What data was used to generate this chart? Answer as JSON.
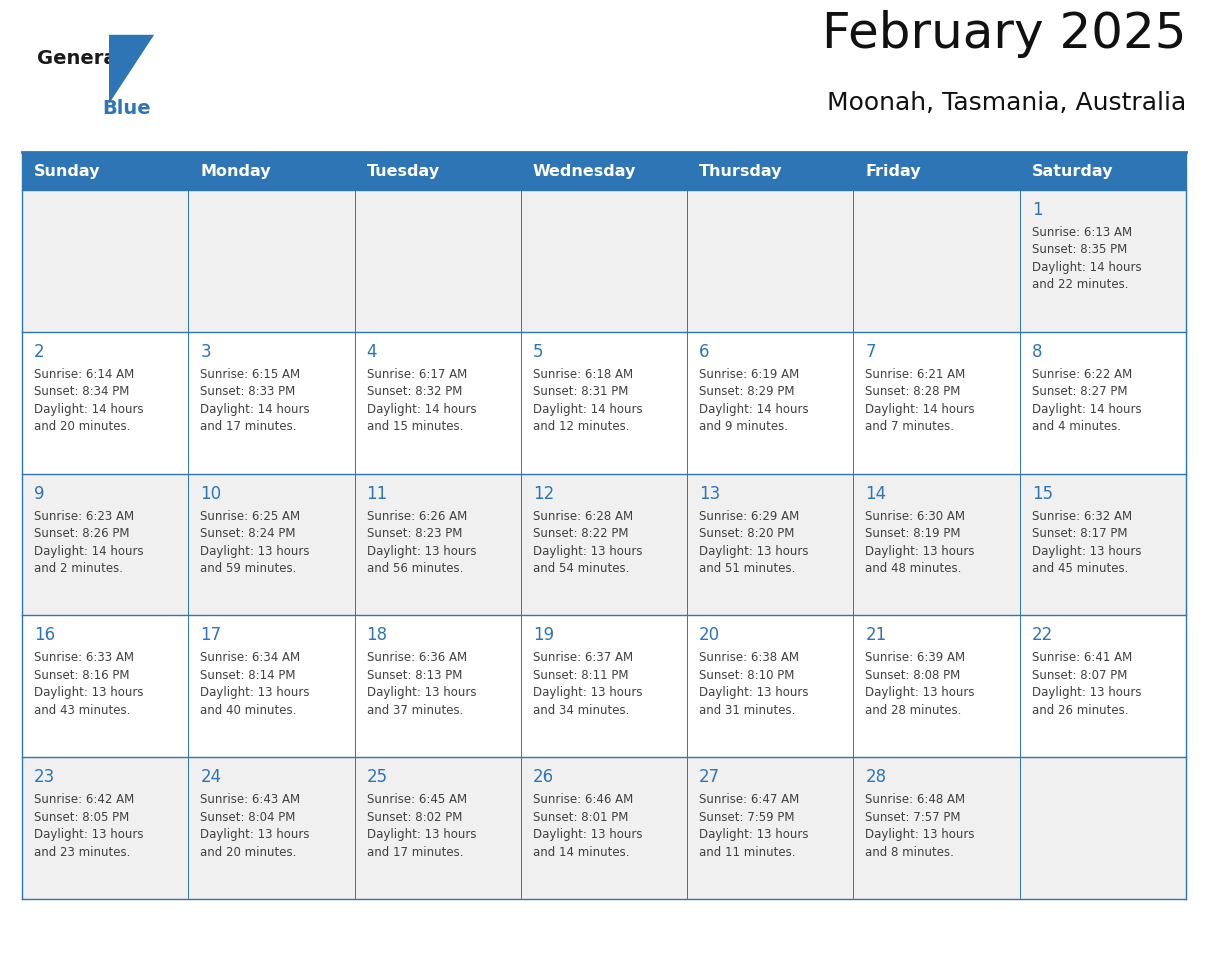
{
  "title": "February 2025",
  "subtitle": "Moonah, Tasmania, Australia",
  "header_bg": "#2E6DA4",
  "header_text": "#FFFFFF",
  "cell_bg_row0": "#F0F0F0",
  "cell_bg_row1": "#FFFFFF",
  "cell_bg_row2": "#F0F0F0",
  "cell_bg_row3": "#FFFFFF",
  "cell_bg_row4": "#F0F0F0",
  "day_headers": [
    "Sunday",
    "Monday",
    "Tuesday",
    "Wednesday",
    "Thursday",
    "Friday",
    "Saturday"
  ],
  "days": [
    {
      "day": 1,
      "col": 6,
      "row": 0,
      "sunrise": "6:13 AM",
      "sunset": "8:35 PM",
      "daylight": "14 hours\nand 22 minutes."
    },
    {
      "day": 2,
      "col": 0,
      "row": 1,
      "sunrise": "6:14 AM",
      "sunset": "8:34 PM",
      "daylight": "14 hours\nand 20 minutes."
    },
    {
      "day": 3,
      "col": 1,
      "row": 1,
      "sunrise": "6:15 AM",
      "sunset": "8:33 PM",
      "daylight": "14 hours\nand 17 minutes."
    },
    {
      "day": 4,
      "col": 2,
      "row": 1,
      "sunrise": "6:17 AM",
      "sunset": "8:32 PM",
      "daylight": "14 hours\nand 15 minutes."
    },
    {
      "day": 5,
      "col": 3,
      "row": 1,
      "sunrise": "6:18 AM",
      "sunset": "8:31 PM",
      "daylight": "14 hours\nand 12 minutes."
    },
    {
      "day": 6,
      "col": 4,
      "row": 1,
      "sunrise": "6:19 AM",
      "sunset": "8:29 PM",
      "daylight": "14 hours\nand 9 minutes."
    },
    {
      "day": 7,
      "col": 5,
      "row": 1,
      "sunrise": "6:21 AM",
      "sunset": "8:28 PM",
      "daylight": "14 hours\nand 7 minutes."
    },
    {
      "day": 8,
      "col": 6,
      "row": 1,
      "sunrise": "6:22 AM",
      "sunset": "8:27 PM",
      "daylight": "14 hours\nand 4 minutes."
    },
    {
      "day": 9,
      "col": 0,
      "row": 2,
      "sunrise": "6:23 AM",
      "sunset": "8:26 PM",
      "daylight": "14 hours\nand 2 minutes."
    },
    {
      "day": 10,
      "col": 1,
      "row": 2,
      "sunrise": "6:25 AM",
      "sunset": "8:24 PM",
      "daylight": "13 hours\nand 59 minutes."
    },
    {
      "day": 11,
      "col": 2,
      "row": 2,
      "sunrise": "6:26 AM",
      "sunset": "8:23 PM",
      "daylight": "13 hours\nand 56 minutes."
    },
    {
      "day": 12,
      "col": 3,
      "row": 2,
      "sunrise": "6:28 AM",
      "sunset": "8:22 PM",
      "daylight": "13 hours\nand 54 minutes."
    },
    {
      "day": 13,
      "col": 4,
      "row": 2,
      "sunrise": "6:29 AM",
      "sunset": "8:20 PM",
      "daylight": "13 hours\nand 51 minutes."
    },
    {
      "day": 14,
      "col": 5,
      "row": 2,
      "sunrise": "6:30 AM",
      "sunset": "8:19 PM",
      "daylight": "13 hours\nand 48 minutes."
    },
    {
      "day": 15,
      "col": 6,
      "row": 2,
      "sunrise": "6:32 AM",
      "sunset": "8:17 PM",
      "daylight": "13 hours\nand 45 minutes."
    },
    {
      "day": 16,
      "col": 0,
      "row": 3,
      "sunrise": "6:33 AM",
      "sunset": "8:16 PM",
      "daylight": "13 hours\nand 43 minutes."
    },
    {
      "day": 17,
      "col": 1,
      "row": 3,
      "sunrise": "6:34 AM",
      "sunset": "8:14 PM",
      "daylight": "13 hours\nand 40 minutes."
    },
    {
      "day": 18,
      "col": 2,
      "row": 3,
      "sunrise": "6:36 AM",
      "sunset": "8:13 PM",
      "daylight": "13 hours\nand 37 minutes."
    },
    {
      "day": 19,
      "col": 3,
      "row": 3,
      "sunrise": "6:37 AM",
      "sunset": "8:11 PM",
      "daylight": "13 hours\nand 34 minutes."
    },
    {
      "day": 20,
      "col": 4,
      "row": 3,
      "sunrise": "6:38 AM",
      "sunset": "8:10 PM",
      "daylight": "13 hours\nand 31 minutes."
    },
    {
      "day": 21,
      "col": 5,
      "row": 3,
      "sunrise": "6:39 AM",
      "sunset": "8:08 PM",
      "daylight": "13 hours\nand 28 minutes."
    },
    {
      "day": 22,
      "col": 6,
      "row": 3,
      "sunrise": "6:41 AM",
      "sunset": "8:07 PM",
      "daylight": "13 hours\nand 26 minutes."
    },
    {
      "day": 23,
      "col": 0,
      "row": 4,
      "sunrise": "6:42 AM",
      "sunset": "8:05 PM",
      "daylight": "13 hours\nand 23 minutes."
    },
    {
      "day": 24,
      "col": 1,
      "row": 4,
      "sunrise": "6:43 AM",
      "sunset": "8:04 PM",
      "daylight": "13 hours\nand 20 minutes."
    },
    {
      "day": 25,
      "col": 2,
      "row": 4,
      "sunrise": "6:45 AM",
      "sunset": "8:02 PM",
      "daylight": "13 hours\nand 17 minutes."
    },
    {
      "day": 26,
      "col": 3,
      "row": 4,
      "sunrise": "6:46 AM",
      "sunset": "8:01 PM",
      "daylight": "13 hours\nand 14 minutes."
    },
    {
      "day": 27,
      "col": 4,
      "row": 4,
      "sunrise": "6:47 AM",
      "sunset": "7:59 PM",
      "daylight": "13 hours\nand 11 minutes."
    },
    {
      "day": 28,
      "col": 5,
      "row": 4,
      "sunrise": "6:48 AM",
      "sunset": "7:57 PM",
      "daylight": "13 hours\nand 8 minutes."
    }
  ],
  "num_rows": 5,
  "header_bg_color": "#2E75B6",
  "divider_color": "#2E75B6",
  "day_num_color": "#2E75B6",
  "text_color": "#404040",
  "header_text_color": "#FFFFFF",
  "cell_text_size": 8.5,
  "day_num_size": 12,
  "header_font_size": 11.5,
  "title_font_size": 36,
  "subtitle_font_size": 18
}
